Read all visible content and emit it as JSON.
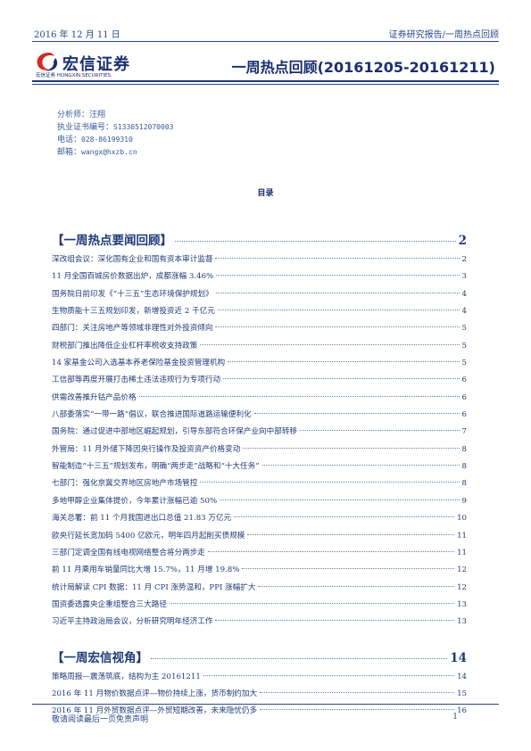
{
  "header": {
    "date": "2016 年 12 月 11 日",
    "report_type": "证券研究报告/一周热点回顾"
  },
  "logo": {
    "cn_name": "宏信证券",
    "en_name": "宏信证券 HONGXIN SECURITIES",
    "colors": {
      "red": "#d42a20",
      "navy": "#1a2f6e"
    }
  },
  "title": "一周热点回顾(20161205-20161211)",
  "analyst": {
    "name_label": "分析师：",
    "name": "汪翔",
    "cert_label": "执业证书编号：",
    "cert_no": "S1330512070003",
    "phone_label": "电话：",
    "phone": "028-86199310",
    "email_label": "邮箱：",
    "email": "wangx@hxzb.cn"
  },
  "toc": {
    "heading": "目录",
    "sections": [
      {
        "title": "【一周热点要闻回顾】",
        "page": "2",
        "items": [
          {
            "title": "深改组会议：深化国有企业和国有资本审计监督",
            "page": "2"
          },
          {
            "title": "11 月全国百城房价数据出炉，成都涨幅 3.46%",
            "page": "3"
          },
          {
            "title": "国务院日前印发《“十三五”生态环境保护规划》",
            "page": "4"
          },
          {
            "title": "生物质能十三五规划印发，新增投资近 2 千亿元",
            "page": "4"
          },
          {
            "title": "四部门：关注房地产等领域非理性对外投资倾向",
            "page": "5"
          },
          {
            "title": "财税部门推出降低企业杠杆率税收支持政策",
            "page": "5"
          },
          {
            "title": "14 家基金公司入选基本养老保险基金投资管理机构",
            "page": "5"
          },
          {
            "title": "工信部等再度开展打击稀土违法违规行为专项行动",
            "page": "6"
          },
          {
            "title": "供需改善推升钴产品价格",
            "page": "6"
          },
          {
            "title": "八部委落实“一带一路”倡议，联合推进国际道路运输便利化",
            "page": "6"
          },
          {
            "title": "国务院：通过促进中部地区崛起规划，引导东部符合环保产业向中部转移",
            "page": "7"
          },
          {
            "title": "外管局：11 月外储下降因央行操作及投资资产价格变动",
            "page": "8"
          },
          {
            "title": "智能制造“十三五”规划发布，明确“两步走”战略和“十大任务”",
            "page": "8"
          },
          {
            "title": "七部门：强化京冀交界地区房地产市场管控",
            "page": "8"
          },
          {
            "title": "多地甲醇企业集体提价，今年累计涨幅已逾 50%",
            "page": "9"
          },
          {
            "title": "海关总署：前 11 个月我国进出口总值 21.83 万亿元",
            "page": "10"
          },
          {
            "title": "欧央行延长宽加码 5400 亿欧元，明年四月起削买债规模",
            "page": "11"
          },
          {
            "title": "三部门定调全国有线电视网络整合将分两步走",
            "page": "11"
          },
          {
            "title": "前 11 月乘用车销量同比大增 15.7%，11 月增 19.8%",
            "page": "12"
          },
          {
            "title": "统计局解读 CPI 数据：11 月 CPI 涨势温和，PPI 涨幅扩大",
            "page": "12"
          },
          {
            "title": "国资委透露央企重组整合三大路径",
            "page": "13"
          },
          {
            "title": "习近平主持政治局会议，分析研究明年经济工作",
            "page": "13"
          }
        ]
      },
      {
        "title": "【一周宏信视角】",
        "page": "14",
        "items": [
          {
            "title": "策略周报—震荡筑底，结构为主 20161211",
            "page": "14"
          },
          {
            "title": "2016 年 11 月物价数据点评—物价持续上涨，货币制约加大",
            "page": "15"
          },
          {
            "title": "2016 年 11 月外贸数据点评—外贸短期改善，未来隐忧仍多",
            "page": "16"
          }
        ]
      }
    ]
  },
  "footer": {
    "disclaimer": "敬请阅读最后一页免责声明",
    "page_number": "1"
  }
}
